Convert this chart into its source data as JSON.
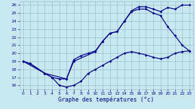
{
  "xlabel": "Graphe des températures (°c)",
  "xlim": [
    -0.5,
    23.5
  ],
  "ylim": [
    15.5,
    26.5
  ],
  "xticks": [
    0,
    1,
    2,
    3,
    4,
    5,
    6,
    7,
    8,
    9,
    10,
    11,
    12,
    13,
    14,
    15,
    16,
    17,
    18,
    19,
    20,
    21,
    22,
    23
  ],
  "yticks": [
    16,
    17,
    18,
    19,
    20,
    21,
    22,
    23,
    24,
    25,
    26
  ],
  "background_color": "#c8e8f0",
  "grid_color": "#99bbcc",
  "line_color": "#000088",
  "line1_x": [
    0,
    1,
    3,
    4,
    5,
    6,
    7,
    8,
    9,
    10,
    11,
    12,
    13,
    14,
    15,
    16,
    17,
    18,
    19,
    20,
    21,
    22,
    23
  ],
  "line1_y": [
    19,
    18.7,
    17.5,
    17.0,
    16.0,
    15.8,
    16.0,
    16.5,
    17.5,
    18.0,
    18.5,
    19.0,
    19.5,
    20.0,
    20.2,
    20.0,
    19.8,
    19.5,
    19.3,
    19.5,
    20.0,
    20.2,
    20.3
  ],
  "line2_x": [
    0,
    1,
    3,
    4,
    5,
    6,
    7,
    10,
    11,
    12,
    13,
    14,
    15,
    16,
    17,
    18,
    19,
    20,
    21,
    22,
    23
  ],
  "line2_y": [
    19,
    18.7,
    17.5,
    17.0,
    16.8,
    16.8,
    19.0,
    20.2,
    21.5,
    22.5,
    22.7,
    24.0,
    25.2,
    25.5,
    25.5,
    25.0,
    24.7,
    23.3,
    22.2,
    21.0,
    20.3
  ],
  "line3_x": [
    0,
    3,
    6,
    7,
    8,
    9,
    10,
    11,
    12,
    13,
    14,
    15,
    16,
    17,
    18,
    19,
    20,
    21,
    22,
    23
  ],
  "line3_y": [
    19,
    17.5,
    16.8,
    19.2,
    19.7,
    20.0,
    20.3,
    21.5,
    22.5,
    22.7,
    24.0,
    25.3,
    25.8,
    25.8,
    25.5,
    25.2,
    25.7,
    25.5,
    26.0,
    26.0
  ]
}
